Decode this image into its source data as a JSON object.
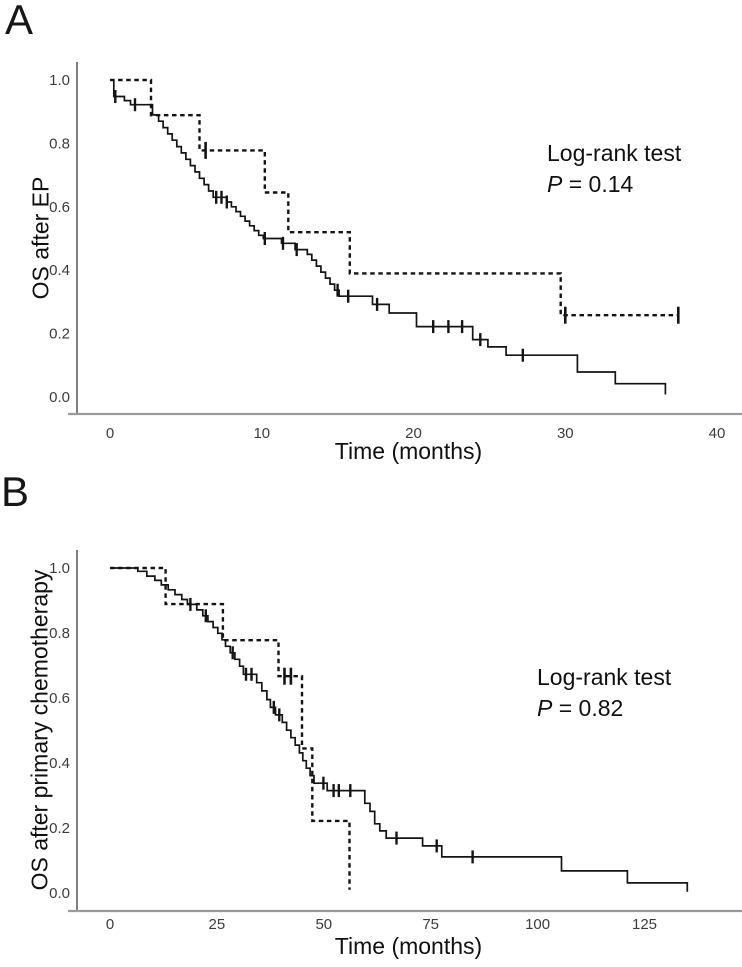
{
  "chart_data": [
    {
      "type": "line",
      "subtype": "kaplan_meier_step",
      "panel_letter": "A",
      "xlabel": "Time (months)",
      "ylabel": "OS after EP",
      "annotation": {
        "line1": "Log-rank test",
        "p_symbol": "P",
        "p_value": " = 0.14"
      },
      "x_ticks": [
        0,
        10,
        20,
        30,
        40
      ],
      "x_tick_labels": [
        "0",
        "10",
        "20",
        "30",
        "40"
      ],
      "y_ticks": [
        0,
        0.2,
        0.4,
        0.6,
        0.8,
        1
      ],
      "y_tick_labels": [
        "0.0",
        "0.2",
        "0.4",
        "0.6",
        "0.8",
        "1.0"
      ],
      "xlim": [
        0,
        41
      ],
      "ylim": [
        0,
        1
      ],
      "grid": false,
      "legend": "none",
      "series": [
        {
          "name": "group-solid",
          "line_style": "solid",
          "steps": [
            [
              0,
              1.0
            ],
            [
              0.25,
              0.948
            ],
            [
              0.95,
              0.935
            ],
            [
              1.35,
              0.922
            ],
            [
              2.8,
              0.89
            ],
            [
              3.2,
              0.87
            ],
            [
              3.5,
              0.85
            ],
            [
              3.8,
              0.83
            ],
            [
              4.1,
              0.81
            ],
            [
              4.4,
              0.79
            ],
            [
              4.7,
              0.77
            ],
            [
              5.0,
              0.75
            ],
            [
              5.3,
              0.73
            ],
            [
              5.6,
              0.71
            ],
            [
              5.9,
              0.69
            ],
            [
              6.2,
              0.67
            ],
            [
              6.5,
              0.65
            ],
            [
              6.8,
              0.63
            ],
            [
              7.7,
              0.615
            ],
            [
              8.0,
              0.6
            ],
            [
              8.3,
              0.585
            ],
            [
              8.6,
              0.57
            ],
            [
              8.9,
              0.555
            ],
            [
              9.2,
              0.54
            ],
            [
              9.5,
              0.525
            ],
            [
              9.8,
              0.51
            ],
            [
              10.1,
              0.5
            ],
            [
              11.3,
              0.485
            ],
            [
              12.2,
              0.465
            ],
            [
              13.0,
              0.45
            ],
            [
              13.3,
              0.432
            ],
            [
              13.6,
              0.413
            ],
            [
              13.9,
              0.394
            ],
            [
              14.2,
              0.375
            ],
            [
              14.5,
              0.356
            ],
            [
              14.8,
              0.337
            ],
            [
              15.1,
              0.318
            ],
            [
              17.3,
              0.292
            ],
            [
              18.4,
              0.265
            ],
            [
              20.2,
              0.222
            ],
            [
              23.9,
              0.181
            ],
            [
              24.9,
              0.158
            ],
            [
              26.1,
              0.132
            ],
            [
              30.8,
              0.079
            ],
            [
              33.3,
              0.042
            ],
            [
              36.6,
              0.008
            ]
          ],
          "end_time": 36.6,
          "censor_times": [
            0.35,
            1.65,
            7.0,
            7.35,
            7.7,
            10.2,
            11.4,
            12.3,
            15.0,
            15.7,
            17.6,
            21.3,
            22.3,
            23.2,
            24.4,
            27.2
          ]
        },
        {
          "name": "group-dashed",
          "line_style": "dashed",
          "steps": [
            [
              0,
              1.0
            ],
            [
              2.7,
              0.889
            ],
            [
              5.9,
              0.778
            ],
            [
              10.2,
              0.645
            ],
            [
              11.75,
              0.52
            ],
            [
              15.8,
              0.39
            ],
            [
              29.7,
              0.258
            ]
          ],
          "end_time": 37.45,
          "censor_times": [
            6.3,
            30.0,
            37.45
          ]
        }
      ]
    },
    {
      "type": "line",
      "subtype": "kaplan_meier_step",
      "panel_letter": "B",
      "xlabel": "Time (months)",
      "ylabel": "OS after primary chemotherapy",
      "annotation": {
        "line1": "Log-rank test",
        "p_symbol": "P",
        "p_value": " = 0.82"
      },
      "x_ticks": [
        0,
        25,
        50,
        75,
        100,
        125
      ],
      "x_tick_labels": [
        "0",
        "25",
        "50",
        "75",
        "100",
        "125"
      ],
      "y_ticks": [
        0,
        0.2,
        0.4,
        0.6,
        0.8,
        1
      ],
      "y_tick_labels": [
        "0.0",
        "0.2",
        "0.4",
        "0.6",
        "0.8",
        "1.0"
      ],
      "xlim": [
        0,
        145
      ],
      "ylim": [
        0,
        1
      ],
      "grid": false,
      "legend": "none",
      "series": [
        {
          "name": "group-solid",
          "line_style": "solid",
          "steps": [
            [
              0,
              1.0
            ],
            [
              6.5,
              0.99
            ],
            [
              8.6,
              0.975
            ],
            [
              10.5,
              0.962
            ],
            [
              12.0,
              0.948
            ],
            [
              13.6,
              0.933
            ],
            [
              15.2,
              0.918
            ],
            [
              16.8,
              0.903
            ],
            [
              18.1,
              0.888
            ],
            [
              20.3,
              0.871
            ],
            [
              21.7,
              0.853
            ],
            [
              22.9,
              0.835
            ],
            [
              24.1,
              0.817
            ],
            [
              25.2,
              0.799
            ],
            [
              26.2,
              0.779
            ],
            [
              27.0,
              0.759
            ],
            [
              28.1,
              0.739
            ],
            [
              29.2,
              0.719
            ],
            [
              30.3,
              0.698
            ],
            [
              31.2,
              0.673
            ],
            [
              34.3,
              0.647
            ],
            [
              35.5,
              0.622
            ],
            [
              36.7,
              0.595
            ],
            [
              37.5,
              0.571
            ],
            [
              38.7,
              0.548
            ],
            [
              40.3,
              0.525
            ],
            [
              41.3,
              0.501
            ],
            [
              42.3,
              0.478
            ],
            [
              43.3,
              0.455
            ],
            [
              44.3,
              0.431
            ],
            [
              45.1,
              0.407
            ],
            [
              45.9,
              0.384
            ],
            [
              46.8,
              0.361
            ],
            [
              47.7,
              0.338
            ],
            [
              50.8,
              0.315
            ],
            [
              59.6,
              0.276
            ],
            [
              60.8,
              0.251
            ],
            [
              61.9,
              0.213
            ],
            [
              63.1,
              0.191
            ],
            [
              64.6,
              0.169
            ],
            [
              73.1,
              0.145
            ],
            [
              77.6,
              0.111
            ],
            [
              105.6,
              0.068
            ],
            [
              121.0,
              0.031
            ],
            [
              135.0,
              0.004
            ]
          ],
          "end_time": 135.0,
          "censor_times": [
            18.8,
            22.4,
            28.7,
            31.8,
            33.1,
            38.3,
            39.6,
            49.9,
            52.3,
            53.5,
            56.2,
            67.0,
            76.4,
            84.8
          ]
        },
        {
          "name": "group-dashed",
          "line_style": "dashed",
          "steps": [
            [
              0,
              1.0
            ],
            [
              13.0,
              0.889
            ],
            [
              26.4,
              0.778
            ],
            [
              39.4,
              0.667
            ],
            [
              44.9,
              0.445
            ],
            [
              47.3,
              0.222
            ],
            [
              56.0,
              0.01
            ]
          ],
          "end_time": 56.0,
          "censor_times": [
            40.8,
            42.3
          ]
        }
      ]
    }
  ]
}
